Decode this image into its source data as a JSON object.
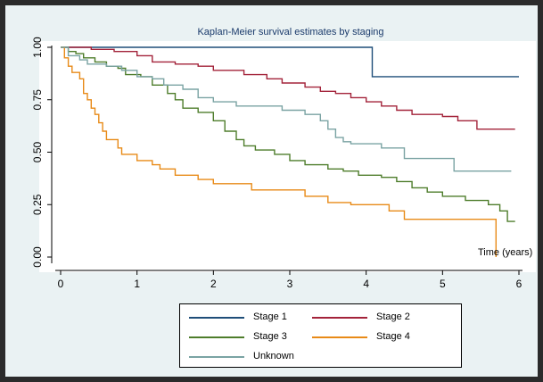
{
  "chart_data": {
    "type": "line",
    "step": true,
    "title": "Kaplan-Meier survival estimates by staging",
    "xlabel": "Time (years)",
    "ylabel": "",
    "xlim": [
      0,
      6
    ],
    "ylim": [
      0,
      1
    ],
    "x_ticks": [
      "0",
      "1",
      "2",
      "3",
      "4",
      "5",
      "6"
    ],
    "y_ticks": [
      "0.00",
      "0.25",
      "0.50",
      "0.75",
      "1.00"
    ],
    "grid": false,
    "legend_position": "bottom",
    "series": [
      {
        "name": "Stage 1",
        "color": "#1f4e79",
        "points": [
          [
            0,
            1.0
          ],
          [
            4.08,
            1.0
          ],
          [
            4.08,
            0.86
          ],
          [
            6.0,
            0.86
          ]
        ]
      },
      {
        "name": "Stage 2",
        "color": "#a3233a",
        "points": [
          [
            0,
            1.0
          ],
          [
            0.4,
            0.99
          ],
          [
            0.7,
            0.98
          ],
          [
            1.0,
            0.96
          ],
          [
            1.2,
            0.93
          ],
          [
            1.5,
            0.92
          ],
          [
            1.8,
            0.91
          ],
          [
            2.0,
            0.89
          ],
          [
            2.4,
            0.87
          ],
          [
            2.7,
            0.85
          ],
          [
            2.9,
            0.83
          ],
          [
            3.2,
            0.81
          ],
          [
            3.4,
            0.79
          ],
          [
            3.6,
            0.78
          ],
          [
            3.8,
            0.76
          ],
          [
            4.0,
            0.74
          ],
          [
            4.2,
            0.72
          ],
          [
            4.4,
            0.7
          ],
          [
            4.6,
            0.68
          ],
          [
            5.0,
            0.67
          ],
          [
            5.2,
            0.65
          ],
          [
            5.45,
            0.61
          ],
          [
            5.95,
            0.61
          ]
        ]
      },
      {
        "name": "Stage 3",
        "color": "#4e7d2b",
        "points": [
          [
            0,
            1.0
          ],
          [
            0.1,
            0.98
          ],
          [
            0.2,
            0.97
          ],
          [
            0.3,
            0.95
          ],
          [
            0.45,
            0.93
          ],
          [
            0.6,
            0.91
          ],
          [
            0.75,
            0.9
          ],
          [
            0.85,
            0.87
          ],
          [
            1.05,
            0.86
          ],
          [
            1.2,
            0.82
          ],
          [
            1.4,
            0.78
          ],
          [
            1.5,
            0.75
          ],
          [
            1.6,
            0.71
          ],
          [
            1.8,
            0.69
          ],
          [
            2.0,
            0.65
          ],
          [
            2.15,
            0.6
          ],
          [
            2.3,
            0.56
          ],
          [
            2.4,
            0.53
          ],
          [
            2.55,
            0.51
          ],
          [
            2.8,
            0.49
          ],
          [
            3.0,
            0.46
          ],
          [
            3.2,
            0.44
          ],
          [
            3.5,
            0.42
          ],
          [
            3.7,
            0.41
          ],
          [
            3.9,
            0.39
          ],
          [
            4.2,
            0.38
          ],
          [
            4.4,
            0.36
          ],
          [
            4.6,
            0.33
          ],
          [
            4.8,
            0.31
          ],
          [
            5.0,
            0.29
          ],
          [
            5.3,
            0.27
          ],
          [
            5.6,
            0.25
          ],
          [
            5.75,
            0.22
          ],
          [
            5.85,
            0.17
          ],
          [
            5.95,
            0.17
          ]
        ]
      },
      {
        "name": "Stage 4",
        "color": "#e88a17",
        "points": [
          [
            0,
            1.0
          ],
          [
            0.05,
            0.95
          ],
          [
            0.1,
            0.91
          ],
          [
            0.15,
            0.88
          ],
          [
            0.25,
            0.85
          ],
          [
            0.3,
            0.78
          ],
          [
            0.35,
            0.75
          ],
          [
            0.4,
            0.71
          ],
          [
            0.45,
            0.68
          ],
          [
            0.5,
            0.64
          ],
          [
            0.55,
            0.6
          ],
          [
            0.6,
            0.56
          ],
          [
            0.75,
            0.52
          ],
          [
            0.8,
            0.49
          ],
          [
            1.0,
            0.46
          ],
          [
            1.2,
            0.44
          ],
          [
            1.3,
            0.42
          ],
          [
            1.5,
            0.39
          ],
          [
            1.8,
            0.37
          ],
          [
            2.0,
            0.35
          ],
          [
            2.5,
            0.32
          ],
          [
            3.2,
            0.29
          ],
          [
            3.5,
            0.26
          ],
          [
            3.8,
            0.25
          ],
          [
            4.3,
            0.22
          ],
          [
            4.5,
            0.18
          ],
          [
            5.65,
            0.18
          ],
          [
            5.7,
            0.0
          ]
        ]
      },
      {
        "name": "Unknown",
        "color": "#7aa3a3",
        "points": [
          [
            0,
            1.0
          ],
          [
            0.1,
            0.96
          ],
          [
            0.25,
            0.94
          ],
          [
            0.35,
            0.92
          ],
          [
            0.6,
            0.91
          ],
          [
            0.8,
            0.89
          ],
          [
            1.0,
            0.86
          ],
          [
            1.2,
            0.85
          ],
          [
            1.35,
            0.82
          ],
          [
            1.6,
            0.8
          ],
          [
            1.8,
            0.76
          ],
          [
            2.0,
            0.74
          ],
          [
            2.3,
            0.72
          ],
          [
            2.9,
            0.7
          ],
          [
            3.2,
            0.68
          ],
          [
            3.4,
            0.65
          ],
          [
            3.5,
            0.61
          ],
          [
            3.6,
            0.57
          ],
          [
            3.7,
            0.55
          ],
          [
            3.8,
            0.54
          ],
          [
            4.2,
            0.52
          ],
          [
            4.5,
            0.47
          ],
          [
            4.7,
            0.47
          ],
          [
            5.15,
            0.41
          ],
          [
            5.9,
            0.41
          ]
        ]
      }
    ]
  }
}
